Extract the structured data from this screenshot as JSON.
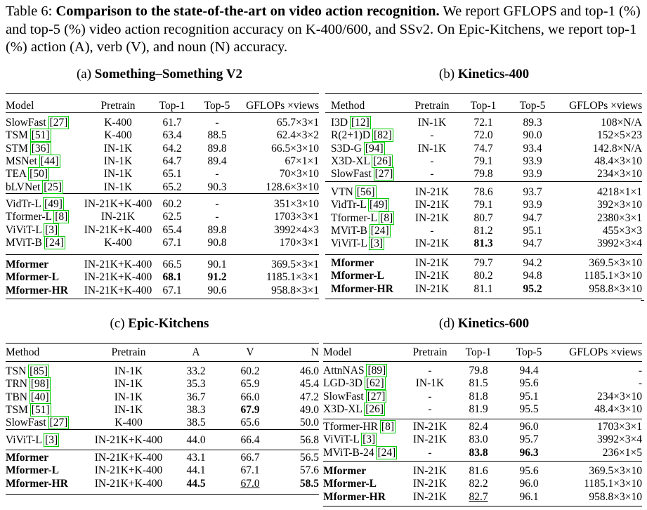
{
  "caption": {
    "label": "Table 6:",
    "bold": "Comparison to the state-of-the-art on video action recognition.",
    "rest": "We report GFLOPS and top-1 (%) and top-5 (%) video action recognition accuracy on K-400/600, and SSv2. On Epic-Kitchens, we report top-1 (%) action (A), verb (V), and noun (N) accuracy."
  },
  "tables": [
    {
      "prefix": "(a)",
      "title": "Something–Something V2",
      "headers": [
        "Model",
        "Pretrain",
        "Top-1",
        "Top-5",
        "GFLOPs ×views"
      ],
      "groups": [
        [
          {
            "name": "SlowFast",
            "ref": "27",
            "cells": [
              "K-400",
              "61.7",
              "-",
              "65.7×3×1"
            ]
          },
          {
            "name": "TSM",
            "ref": "51",
            "cells": [
              "K-400",
              "63.4",
              "88.5",
              "62.4×3×2"
            ]
          },
          {
            "name": "STM",
            "ref": "36",
            "cells": [
              "IN-1K",
              "64.2",
              "89.8",
              "66.5×3×10"
            ]
          },
          {
            "name": "MSNet",
            "ref": "44",
            "cells": [
              "IN-1K",
              "64.7",
              "89.4",
              "67×1×1"
            ]
          },
          {
            "name": "TEA",
            "ref": "50",
            "cells": [
              "IN-1K",
              "65.1",
              "-",
              "70×3×10"
            ]
          },
          {
            "name": "bLVNet",
            "ref": "25",
            "cells": [
              "IN-1K",
              "65.2",
              "90.3",
              "128.6×3×10"
            ]
          }
        ],
        [
          {
            "name": "VidTr-L",
            "ref": "49",
            "cells": [
              "IN-21K+K-400",
              "60.2",
              "-",
              "351×3×10"
            ]
          },
          {
            "name": "Tformer-L",
            "ref": "8",
            "cells": [
              "IN-21K",
              "62.5",
              "-",
              "1703×3×1"
            ]
          },
          {
            "name": "ViViT-L",
            "ref": "3",
            "cells": [
              "IN-21K+K-400",
              "65.4",
              "89.8",
              "3992×4×3"
            ]
          },
          {
            "name": "MViT-B",
            "ref": "24",
            "cells": [
              "K-400",
              "67.1",
              "90.8",
              "170×3×1"
            ]
          }
        ],
        [
          {
            "name": "Mformer",
            "ref": "",
            "bold_name": true,
            "cells": [
              "IN-21K+K-400",
              "66.5",
              "90.1",
              "369.5×3×1"
            ]
          },
          {
            "name": "Mformer-L",
            "ref": "",
            "bold_name": true,
            "bold": [
              1,
              2
            ],
            "cells": [
              "IN-21K+K-400",
              "68.1",
              "91.2",
              "1185.1×3×1"
            ]
          },
          {
            "name": "Mformer-HR",
            "ref": "",
            "bold_name": true,
            "cells": [
              "IN-21K+K-400",
              "67.1",
              "90.6",
              "958.8×3×1"
            ]
          }
        ]
      ]
    },
    {
      "prefix": "(b)",
      "title": "Kinetics-400",
      "headers": [
        "Method",
        "Pretrain",
        "Top-1",
        "Top-5",
        "GFLOPs ×views"
      ],
      "groups": [
        [
          {
            "name": "I3D",
            "ref": "12",
            "cells": [
              "IN-1K",
              "72.1",
              "89.3",
              "108×N/A"
            ]
          },
          {
            "name": "R(2+1)D",
            "ref": "82",
            "cells": [
              "-",
              "72.0",
              "90.0",
              "152×5×23"
            ]
          },
          {
            "name": "S3D-G",
            "ref": "94",
            "cells": [
              "IN-1K",
              "74.7",
              "93.4",
              "142.8×N/A"
            ]
          },
          {
            "name": "X3D-XL",
            "ref": "26",
            "cells": [
              "-",
              "79.1",
              "93.9",
              "48.4×3×10"
            ]
          },
          {
            "name": "SlowFast",
            "ref": "27",
            "cells": [
              "-",
              "79.8",
              "93.9",
              "234×3×10"
            ]
          }
        ],
        [
          {
            "name": "VTN",
            "ref": "56",
            "cells": [
              "IN-21K",
              "78.6",
              "93.7",
              "4218×1×1"
            ]
          },
          {
            "name": "VidTr-L",
            "ref": "49",
            "cells": [
              "IN-21K",
              "79.1",
              "93.9",
              "392×3×10"
            ]
          },
          {
            "name": "Tformer-L",
            "ref": "8",
            "cells": [
              "IN-21K",
              "80.7",
              "94.7",
              "2380×3×1"
            ]
          },
          {
            "name": "MViT-B",
            "ref": "24",
            "cells": [
              "-",
              "81.2",
              "95.1",
              "455×3×3"
            ]
          },
          {
            "name": "ViViT-L",
            "ref": "3",
            "bold": [
              1
            ],
            "cells": [
              "IN-21K",
              "81.3",
              "94.7",
              "3992×3×4"
            ]
          }
        ],
        [
          {
            "name": "Mformer",
            "ref": "",
            "bold_name": true,
            "cells": [
              "IN-21K",
              "79.7",
              "94.2",
              "369.5×3×10"
            ]
          },
          {
            "name": "Mformer-L",
            "ref": "",
            "bold_name": true,
            "cells": [
              "IN-21K",
              "80.2",
              "94.8",
              "1185.1×3×10"
            ]
          },
          {
            "name": "Mformer-HR",
            "ref": "",
            "bold_name": true,
            "bold": [
              2
            ],
            "cells": [
              "IN-21K",
              "81.1",
              "95.2",
              "958.8×3×10"
            ]
          }
        ]
      ]
    },
    {
      "prefix": "(c)",
      "title": "Epic-Kitchens",
      "headers": [
        "Method",
        "Pretrain",
        "A",
        "V",
        "N"
      ],
      "groups": [
        [
          {
            "name": "TSN",
            "ref": "85",
            "cells": [
              "IN-1K",
              "33.2",
              "60.2",
              "46.0"
            ]
          },
          {
            "name": "TRN",
            "ref": "98",
            "cells": [
              "IN-1K",
              "35.3",
              "65.9",
              "45.4"
            ]
          },
          {
            "name": "TBN",
            "ref": "40",
            "cells": [
              "IN-1K",
              "36.7",
              "66.0",
              "47.2"
            ]
          },
          {
            "name": "TSM",
            "ref": "51",
            "bold": [
              2
            ],
            "cells": [
              "IN-1K",
              "38.3",
              "67.9",
              "49.0"
            ]
          },
          {
            "name": "SlowFast",
            "ref": "27",
            "cells": [
              "K-400",
              "38.5",
              "65.6",
              "50.0"
            ]
          }
        ],
        [
          {
            "name": "ViViT-L",
            "ref": "3",
            "cells": [
              "IN-21K+K-400",
              "44.0",
              "66.4",
              "56.8"
            ]
          }
        ],
        [
          {
            "name": "Mformer",
            "ref": "",
            "bold_name": true,
            "cells": [
              "IN-21K+K-400",
              "43.1",
              "66.7",
              "56.5"
            ]
          },
          {
            "name": "Mformer-L",
            "ref": "",
            "bold_name": true,
            "cells": [
              "IN-21K+K-400",
              "44.1",
              "67.1",
              "57.6"
            ]
          },
          {
            "name": "Mformer-HR",
            "ref": "",
            "bold_name": true,
            "bold": [
              1,
              3
            ],
            "underline": [
              2
            ],
            "cells": [
              "IN-21K+K-400",
              "44.5",
              "67.0",
              "58.5"
            ]
          }
        ]
      ]
    },
    {
      "prefix": "(d)",
      "title": "Kinetics-600",
      "headers": [
        "Model",
        "Pretrain",
        "Top-1",
        "Top-5",
        "GFLOPs ×views"
      ],
      "groups": [
        [
          {
            "name": "AttnNAS",
            "ref": "89",
            "cells": [
              "-",
              "79.8",
              "94.4",
              "-"
            ]
          },
          {
            "name": "LGD-3D",
            "ref": "62",
            "cells": [
              "IN-1K",
              "81.5",
              "95.6",
              "-"
            ]
          },
          {
            "name": "SlowFast",
            "ref": "27",
            "cells": [
              "-",
              "81.8",
              "95.1",
              "234×3×10"
            ]
          },
          {
            "name": "X3D-XL",
            "ref": "26",
            "cells": [
              "-",
              "81.9",
              "95.5",
              "48.4×3×10"
            ]
          }
        ],
        [
          {
            "name": "Tformer-HR",
            "ref": "8",
            "cells": [
              "IN-21K",
              "82.4",
              "96.0",
              "1703×3×1"
            ]
          },
          {
            "name": "ViViT-L",
            "ref": "3",
            "cells": [
              "IN-21K",
              "83.0",
              "95.7",
              "3992×3×4"
            ]
          },
          {
            "name": "MViT-B-24",
            "ref": "24",
            "bold": [
              1,
              2
            ],
            "cells": [
              "-",
              "83.8",
              "96.3",
              "236×1×5"
            ]
          }
        ],
        [
          {
            "name": "Mformer",
            "ref": "",
            "bold_name": true,
            "cells": [
              "IN-21K",
              "81.6",
              "95.6",
              "369.5×3×10"
            ]
          },
          {
            "name": "Mformer-L",
            "ref": "",
            "bold_name": true,
            "cells": [
              "IN-21K",
              "82.2",
              "96.0",
              "1185.1×3×10"
            ]
          },
          {
            "name": "Mformer-HR",
            "ref": "",
            "bold_name": true,
            "underline": [
              1
            ],
            "cells": [
              "IN-21K",
              "82.7",
              "96.1",
              "958.8×3×10"
            ]
          }
        ]
      ]
    }
  ]
}
